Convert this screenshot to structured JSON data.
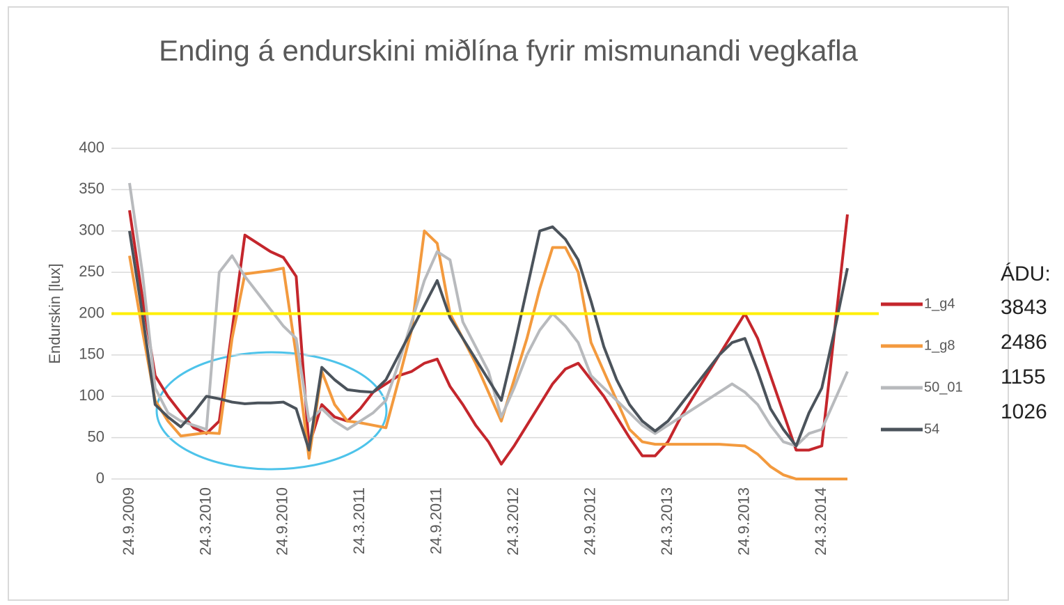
{
  "chart_data": {
    "type": "line",
    "title": "Ending á endurskini miðlína fyrir mismunandi vegkafla",
    "y_label": "Endurskin [lux]",
    "categories": [
      "24.9.2009",
      null,
      null,
      null,
      null,
      null,
      "24.3.2010",
      null,
      null,
      null,
      null,
      null,
      "24.9.2010",
      null,
      null,
      null,
      null,
      null,
      "24.3.2011",
      null,
      null,
      null,
      null,
      null,
      "24.9.2011",
      null,
      null,
      null,
      null,
      null,
      "24.3.2012",
      null,
      null,
      null,
      null,
      null,
      "24.9.2012",
      null,
      null,
      null,
      null,
      null,
      "24.3.2013",
      null,
      null,
      null,
      null,
      null,
      "24.9.2013",
      null,
      null,
      null,
      null,
      null,
      "24.3.2014",
      null,
      null
    ],
    "series": [
      {
        "name": "1_g4",
        "color": "#c4262c",
        "values": [
          325,
          220,
          125,
          100,
          80,
          62,
          55,
          70,
          180,
          295,
          285,
          275,
          268,
          245,
          40,
          90,
          75,
          70,
          85,
          105,
          115,
          125,
          130,
          140,
          145,
          112,
          90,
          65,
          45,
          18,
          40,
          65,
          90,
          115,
          133,
          140,
          120,
          100,
          75,
          50,
          28,
          28,
          45,
          75,
          100,
          125,
          150,
          175,
          200,
          170,
          125,
          80,
          35,
          35,
          40,
          180,
          320
        ]
      },
      {
        "name": "1_g8",
        "color": "#f39a3e",
        "values": [
          270,
          180,
          95,
          70,
          52,
          54,
          56,
          55,
          170,
          248,
          250,
          252,
          255,
          150,
          25,
          130,
          90,
          70,
          68,
          65,
          62,
          120,
          180,
          300,
          285,
          200,
          170,
          140,
          105,
          70,
          120,
          170,
          230,
          280,
          280,
          250,
          165,
          130,
          95,
          60,
          45,
          42,
          42,
          42,
          42,
          42,
          42,
          41,
          40,
          30,
          15,
          5,
          0,
          0,
          0,
          0,
          0
        ]
      },
      {
        "name": "50_01",
        "color": "#b8babd",
        "values": [
          358,
          250,
          110,
          80,
          70,
          65,
          60,
          250,
          270,
          245,
          225,
          205,
          185,
          170,
          70,
          85,
          70,
          60,
          70,
          80,
          95,
          140,
          190,
          240,
          275,
          265,
          190,
          160,
          130,
          75,
          110,
          150,
          180,
          200,
          185,
          165,
          125,
          110,
          95,
          80,
          65,
          55,
          65,
          75,
          85,
          95,
          105,
          115,
          105,
          90,
          65,
          45,
          40,
          55,
          60,
          95,
          130
        ]
      },
      {
        "name": "54",
        "color": "#4b535b",
        "values": [
          300,
          200,
          90,
          75,
          63,
          80,
          100,
          97,
          93,
          91,
          92,
          92,
          93,
          85,
          35,
          135,
          120,
          108,
          106,
          105,
          120,
          150,
          180,
          210,
          240,
          195,
          170,
          145,
          120,
          95,
          160,
          230,
          300,
          305,
          290,
          265,
          215,
          160,
          120,
          90,
          70,
          58,
          70,
          90,
          110,
          130,
          150,
          165,
          170,
          130,
          85,
          60,
          40,
          80,
          110,
          180,
          255
        ]
      }
    ],
    "ylim": [
      0,
      400
    ],
    "yticks": [
      0,
      50,
      100,
      150,
      200,
      250,
      300,
      350,
      400
    ],
    "grid": true,
    "reference_line": {
      "value": 200,
      "color": "#ffef00"
    },
    "side_note": {
      "label": "ÁDU:",
      "values": [
        3843,
        2486,
        1155,
        1026
      ]
    }
  }
}
